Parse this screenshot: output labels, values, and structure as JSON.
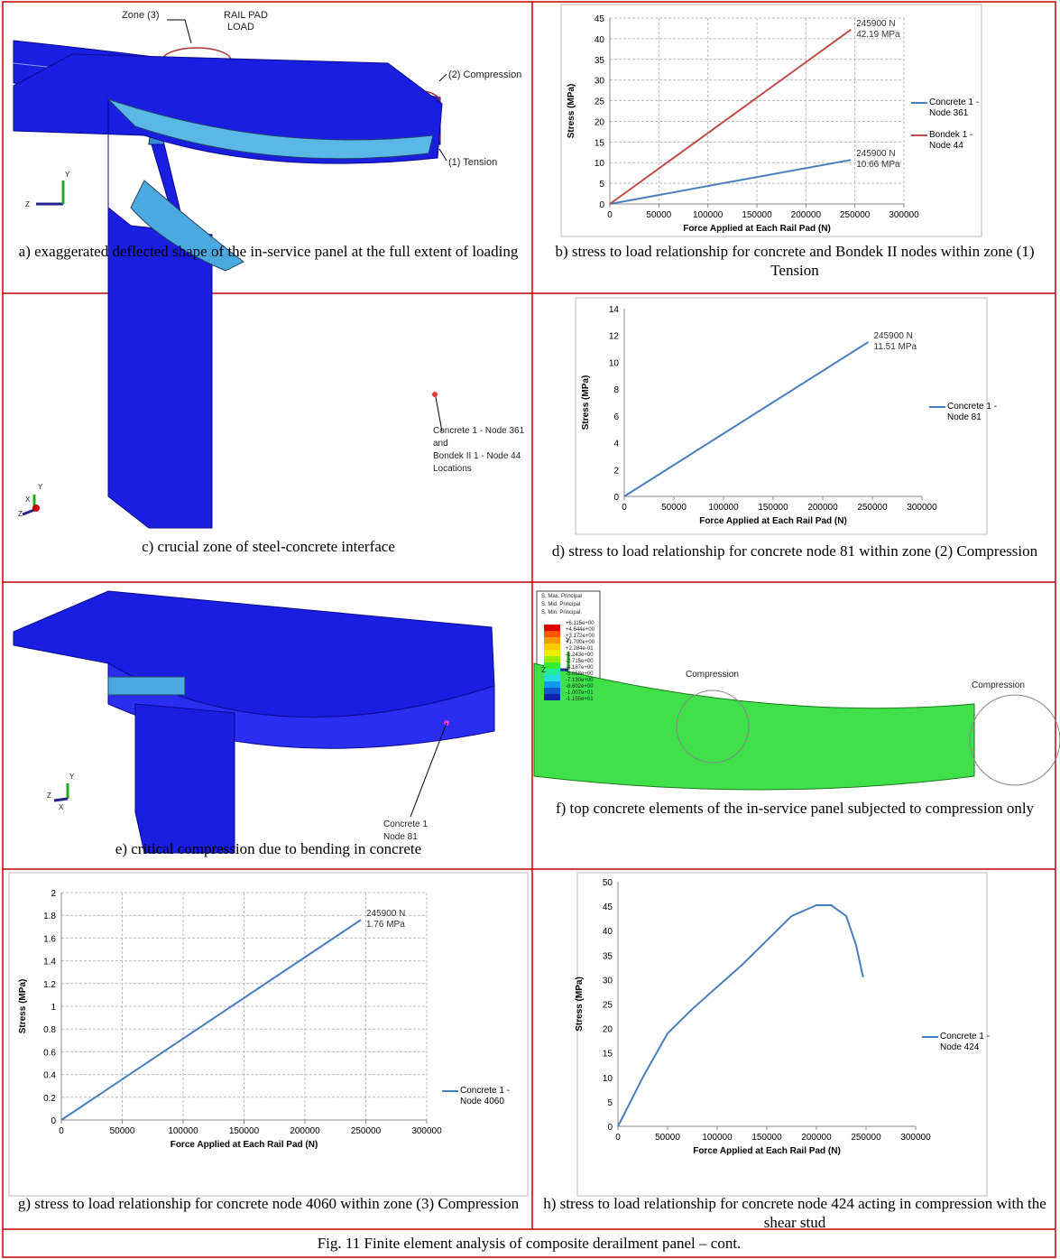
{
  "figure": {
    "caption": "Fig. 11 Finite element analysis of composite derailment panel – cont.",
    "panels": [
      {
        "caption": "a) exaggerated deflected shape of the in-service panel at the full extent of loading",
        "image": {
          "labels": [
            "Zone (3)",
            "RAIL PAD",
            "LOAD",
            "(2) Compression",
            "(1) Tension",
            "Y",
            "Z"
          ]
        }
      },
      {
        "caption": "b) stress to load relationship for concrete and Bondek II nodes within zone (1) Tension",
        "chart": {
          "type": "line",
          "x_label": "Force Applied at  Each Rail Pad (N)",
          "y_label": "Stress (MPa)",
          "xlim": [
            0,
            300000
          ],
          "xticks": [
            0,
            50000,
            100000,
            150000,
            200000,
            250000,
            300000
          ],
          "ylim": [
            0,
            45
          ],
          "yticks": [
            0,
            5,
            10,
            15,
            20,
            25,
            30,
            35,
            40,
            45
          ],
          "grid": true,
          "series": [
            {
              "name": "Concrete 1 - Node 361",
              "color": "#4a7ebb",
              "x": [
                0,
                245900
              ],
              "values": [
                0,
                10.66
              ],
              "annotations": [
                "245900 N",
                "10.66 MPa"
              ]
            },
            {
              "name": "Bondek 1 - Node 44",
              "color": "#be4b48",
              "x": [
                0,
                245900
              ],
              "values": [
                0,
                42.19
              ],
              "annotations": [
                "245900 N",
                "42.19 MPa"
              ]
            }
          ]
        }
      },
      {
        "caption": "c) crucial zone of steel-concrete interface",
        "image": {
          "labels": [
            "Concrete 1 - Node 361",
            "and",
            "Bondek II 1 - Node 44",
            "Locations",
            "Y",
            "X",
            "Z"
          ]
        }
      },
      {
        "caption": "d) stress to load relationship for concrete node 81 within zone (2) Compression",
        "chart": {
          "type": "line",
          "x_label": "Force Applied at  Each Rail Pad (N)",
          "y_label": "Stress (MPa)",
          "xlim": [
            0,
            300000
          ],
          "xticks": [
            0,
            50000,
            100000,
            150000,
            200000,
            250000,
            300000
          ],
          "ylim": [
            0,
            14
          ],
          "yticks": [
            0,
            2,
            4,
            6,
            8,
            10,
            12,
            14
          ],
          "grid": false,
          "series": [
            {
              "name": "Concrete 1 - Node 81",
              "color": "#4a7ebb",
              "x": [
                0,
                245900
              ],
              "values": [
                0,
                11.51
              ],
              "annotations": [
                "245900 N",
                "11.51 MPa"
              ]
            }
          ]
        }
      },
      {
        "caption": "e) critical compression due to bending in concrete",
        "image": {
          "labels": [
            "Concrete 1",
            "Node 81",
            "Y",
            "X",
            "Z"
          ]
        }
      },
      {
        "caption": "f) top concrete elements of the in-service panel subjected to compression only",
        "image": {
          "labels": [
            "S, Max. Principal",
            "S, Mid. Principal",
            "S, Min. Principal",
            "+6.115e+00",
            "+4.644e+00",
            "+3.172e+00",
            "+1.700e+00",
            "+2.284e-01",
            "-1.243e+00",
            "-2.715e+00",
            "-4.187e+00",
            "-5.658e+00",
            "-7.130e+00",
            "-8.602e+00",
            "-1.007e+01",
            "-1.155e+01",
            "Compression",
            "Compression",
            "Y",
            "Z"
          ]
        }
      },
      {
        "caption": "g) stress to load relationship for concrete node 4060 within zone (3) Compression",
        "chart": {
          "type": "line",
          "x_label": "Force Applied at Each Rail Pad (N)",
          "y_label": "Stress (MPa)",
          "xlim": [
            0,
            300000
          ],
          "xticks": [
            0,
            50000,
            100000,
            150000,
            200000,
            250000,
            300000
          ],
          "ylim": [
            0,
            2
          ],
          "yticks": [
            0,
            0.2,
            0.4,
            0.6,
            0.8,
            1,
            1.2,
            1.4,
            1.6,
            1.8,
            2
          ],
          "grid": true,
          "series": [
            {
              "name": "Concrete 1 - Node 4060",
              "color": "#4a7ebb",
              "x": [
                0,
                245900
              ],
              "values": [
                0,
                1.76
              ],
              "annotations": [
                "245900 N",
                "1.76 MPa"
              ]
            }
          ]
        }
      },
      {
        "caption": "h) stress to load relationship for concrete node 424 acting in compression with the shear stud",
        "chart": {
          "type": "line",
          "x_label": "Force Applied at Each Rail Pad (N)",
          "y_label": "Stress (MPa)",
          "xlim": [
            0,
            300000
          ],
          "xticks": [
            0,
            50000,
            100000,
            150000,
            200000,
            250000,
            300000
          ],
          "ylim": [
            0,
            50
          ],
          "yticks": [
            0,
            5,
            10,
            15,
            20,
            25,
            30,
            35,
            40,
            45,
            50
          ],
          "grid": false,
          "series": [
            {
              "name": "Concrete 1 - Node 424",
              "color": "#4a7ebb",
              "x": [
                0,
                25000,
                50000,
                75000,
                100000,
                125000,
                150000,
                175000,
                200000,
                215000,
                230000,
                240000,
                247000
              ],
              "values": [
                0,
                10,
                19,
                24,
                28.5,
                33,
                38,
                43,
                45.2,
                45.2,
                43,
                37,
                30.5
              ],
              "annotations": []
            }
          ]
        }
      }
    ]
  }
}
